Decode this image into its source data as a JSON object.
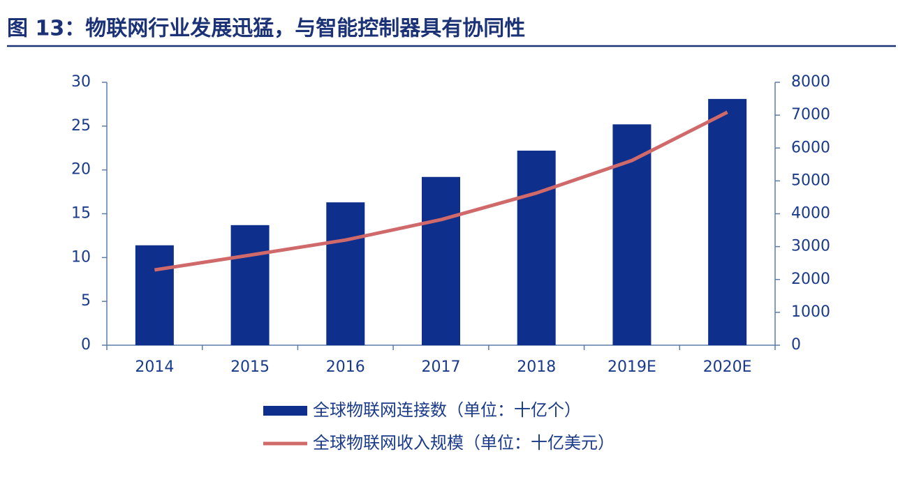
{
  "chart_data": {
    "type": "bar",
    "title": "图 13：物联网行业发展迅猛，与智能控制器具有协同性",
    "categories": [
      "2014",
      "2015",
      "2016",
      "2017",
      "2018",
      "2019E",
      "2020E"
    ],
    "series": [
      {
        "name": "全球物联网连接数（单位：十亿个）",
        "type": "bar",
        "color": "#0f2f8c",
        "values": [
          11.4,
          13.7,
          16.3,
          19.2,
          22.2,
          25.2,
          28.1
        ]
      },
      {
        "name": "全球物联网收入规模（单位：十亿美元）",
        "type": "line",
        "axis": "y2",
        "color": "#d06a6a",
        "values": [
          2290,
          2740,
          3200,
          3820,
          4630,
          5620,
          7090
        ]
      }
    ],
    "ylim": [
      0,
      30
    ],
    "yticks": [
      0,
      5,
      10,
      15,
      20,
      25,
      30
    ],
    "y2lim": [
      0,
      8000
    ],
    "y2ticks": [
      0,
      1000,
      2000,
      3000,
      4000,
      5000,
      6000,
      7000,
      8000
    ]
  }
}
